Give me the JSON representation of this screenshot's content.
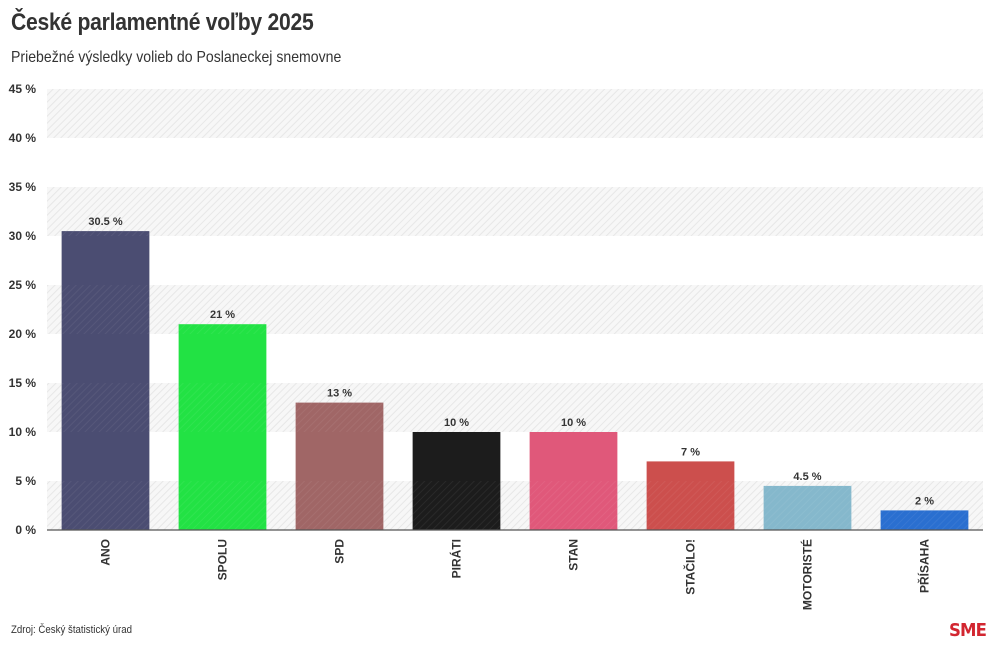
{
  "header": {
    "title": "České parlamentné voľby 2025",
    "subtitle": "Priebežné výsledky volieb do Poslaneckej snemovne"
  },
  "footer": {
    "source": "Zdroj: Český štatistický úrad",
    "logo": "SME",
    "logo_color": "#d22630"
  },
  "chart_data": {
    "type": "bar",
    "title": "České parlamentné voľby 2025",
    "subtitle": "Priebežné výsledky volieb do Poslaneckej snemovne",
    "xlabel": "",
    "ylabel": "",
    "ylim": [
      0,
      45
    ],
    "yticks": [
      0,
      5,
      10,
      15,
      20,
      25,
      30,
      35,
      40,
      45
    ],
    "ytick_labels": [
      "0 %",
      "5 %",
      "10 %",
      "15 %",
      "20 %",
      "25 %",
      "30 %",
      "35 %",
      "40 %",
      "45 %"
    ],
    "grid": "alternating hatched bands",
    "legend": "none",
    "categories": [
      "ANO",
      "SPOLU",
      "SPD",
      "PIRÁTI",
      "STAN",
      "STAČILO!",
      "MOTORISTÉ",
      "PŘÍSAHA"
    ],
    "values": [
      30.5,
      21,
      13,
      10,
      10,
      7,
      4.5,
      2
    ],
    "value_labels": [
      "30.5 %",
      "21 %",
      "13 %",
      "10 %",
      "10 %",
      "7 %",
      "4.5 %",
      "2 %"
    ],
    "colors": [
      "#4b4d72",
      "#22e244",
      "#a06666",
      "#1c1c1c",
      "#e0587a",
      "#cc4f4d",
      "#85b8cc",
      "#2a6fd0"
    ]
  }
}
